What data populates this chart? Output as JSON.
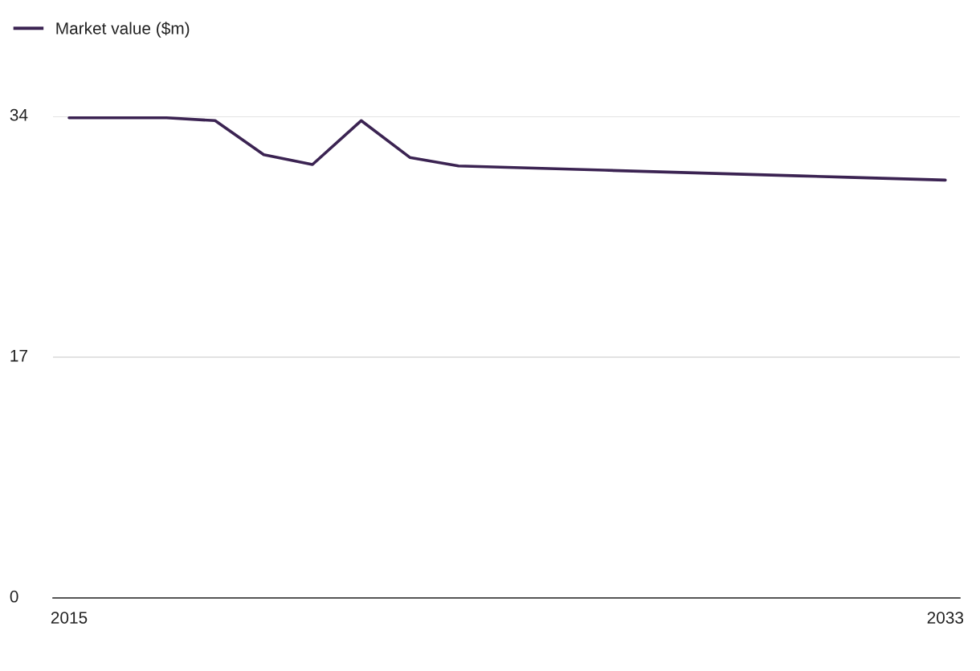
{
  "chart_data": {
    "type": "line",
    "x": [
      2015,
      2016,
      2017,
      2018,
      2019,
      2020,
      2021,
      2022,
      2023,
      2024,
      2025,
      2026,
      2027,
      2028,
      2029,
      2030,
      2031,
      2032,
      2033
    ],
    "series": [
      {
        "name": "Market value ($m)",
        "color": "#3b2352",
        "values": [
          33.9,
          33.9,
          33.9,
          33.7,
          31.3,
          30.6,
          33.7,
          31.1,
          30.5,
          30.4,
          30.3,
          30.2,
          30.1,
          30.0,
          29.9,
          29.8,
          29.7,
          29.6,
          29.5
        ]
      }
    ],
    "xlim": [
      2014.67,
      2033.3
    ],
    "xticks": [
      2015,
      2033
    ],
    "ylim": [
      0,
      34
    ],
    "yticks": [
      0,
      17,
      34
    ],
    "grid": "y",
    "legend": "top left",
    "marker": "none",
    "line_style": "solid"
  }
}
